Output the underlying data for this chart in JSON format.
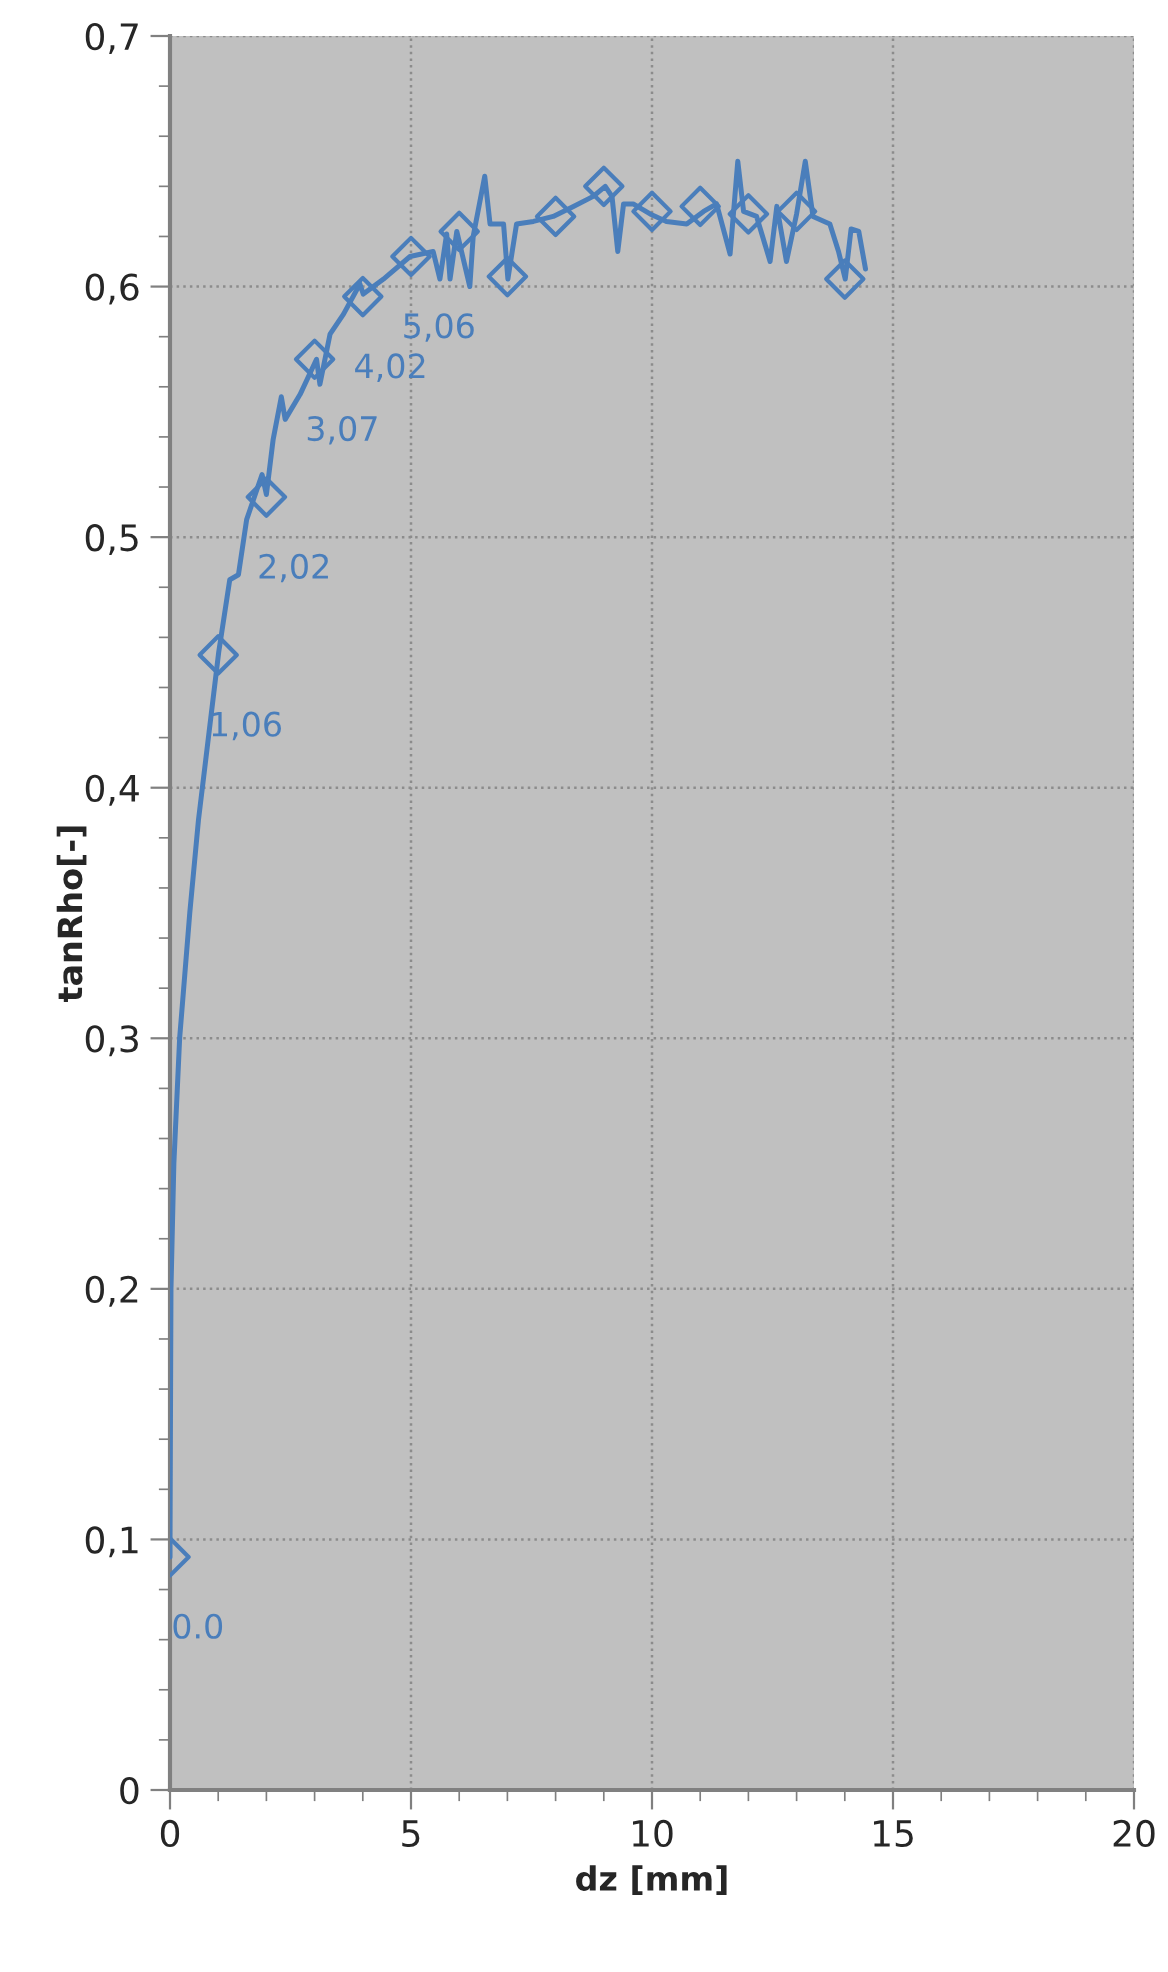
{
  "chart_data": {
    "type": "line",
    "xlabel": "dz [mm]",
    "ylabel": "tanRho[-]",
    "xlim": [
      0,
      20
    ],
    "xticks": [
      0,
      5,
      10,
      15,
      20
    ],
    "ylim": [
      0,
      0.7
    ],
    "yticks": [
      {
        "value": 0,
        "label": "0"
      },
      {
        "value": 0.1,
        "label": "0,1"
      },
      {
        "value": 0.2,
        "label": "0,2"
      },
      {
        "value": 0.3,
        "label": "0,3"
      },
      {
        "value": 0.4,
        "label": "0,4"
      },
      {
        "value": 0.5,
        "label": "0,5"
      },
      {
        "value": 0.6,
        "label": "0,6"
      },
      {
        "value": 0.7,
        "label": "0,7"
      }
    ],
    "grid": true,
    "legend": false,
    "series": [
      {
        "marker": "none",
        "color": "#4a7ebb",
        "x": [
          0,
          0,
          0.02,
          0.08,
          0.2,
          0.41,
          0.59,
          1.01,
          1.24,
          1.42,
          1.59,
          1.91,
          2.0,
          2.14,
          2.31,
          2.39,
          2.7,
          3.04,
          3.11,
          3.32,
          3.6,
          3.94,
          4.01,
          4.43,
          4.49,
          4.98,
          5.46,
          5.6,
          5.74,
          5.81,
          5.95,
          6.22,
          6.29,
          6.53,
          6.64,
          6.92,
          7.01,
          7.19,
          7.54,
          7.95,
          8.37,
          8.78,
          9.03,
          9.17,
          9.29,
          9.41,
          9.61,
          9.96,
          10.3,
          10.72,
          11.07,
          11.34,
          11.62,
          11.78,
          11.9,
          12.17,
          12.45,
          12.59,
          12.79,
          13.0,
          13.18,
          13.34,
          13.69,
          13.87,
          14.01,
          14.13,
          14.29,
          14.43
        ],
        "values": [
          0.093,
          0.1,
          0.2,
          0.25,
          0.3,
          0.35,
          0.387,
          0.454,
          0.483,
          0.485,
          0.507,
          0.525,
          0.517,
          0.539,
          0.556,
          0.547,
          0.557,
          0.571,
          0.561,
          0.581,
          0.589,
          0.601,
          0.597,
          0.603,
          0.604,
          0.612,
          0.614,
          0.603,
          0.621,
          0.603,
          0.622,
          0.6,
          0.62,
          0.644,
          0.625,
          0.625,
          0.603,
          0.625,
          0.626,
          0.628,
          0.632,
          0.636,
          0.64,
          0.636,
          0.614,
          0.633,
          0.633,
          0.629,
          0.626,
          0.625,
          0.63,
          0.633,
          0.613,
          0.65,
          0.63,
          0.628,
          0.61,
          0.632,
          0.61,
          0.629,
          0.65,
          0.628,
          0.625,
          0.614,
          0.603,
          0.623,
          0.622,
          0.607
        ]
      },
      {
        "type": "scatter",
        "marker": "diamond",
        "color": "#4a7ebb",
        "x": [
          0,
          1,
          2,
          3,
          4,
          5,
          6,
          7,
          8,
          9,
          10,
          11,
          12,
          13,
          14
        ],
        "values": [
          0.093,
          0.453,
          0.516,
          0.571,
          0.596,
          0.612,
          0.622,
          0.604,
          0.628,
          0.64,
          0.63,
          0.632,
          0.629,
          0.63,
          0.603
        ]
      }
    ],
    "annotations": [
      {
        "text": "0.0",
        "x": 0,
        "y": 0.093
      },
      {
        "text": "1,06",
        "x": 1,
        "y": 0.453
      },
      {
        "text": "2,02",
        "x": 2,
        "y": 0.516
      },
      {
        "text": "3,07",
        "x": 3,
        "y": 0.571
      },
      {
        "text": "4,02",
        "x": 4,
        "y": 0.596
      },
      {
        "text": "5,06",
        "x": 5,
        "y": 0.612
      }
    ]
  }
}
